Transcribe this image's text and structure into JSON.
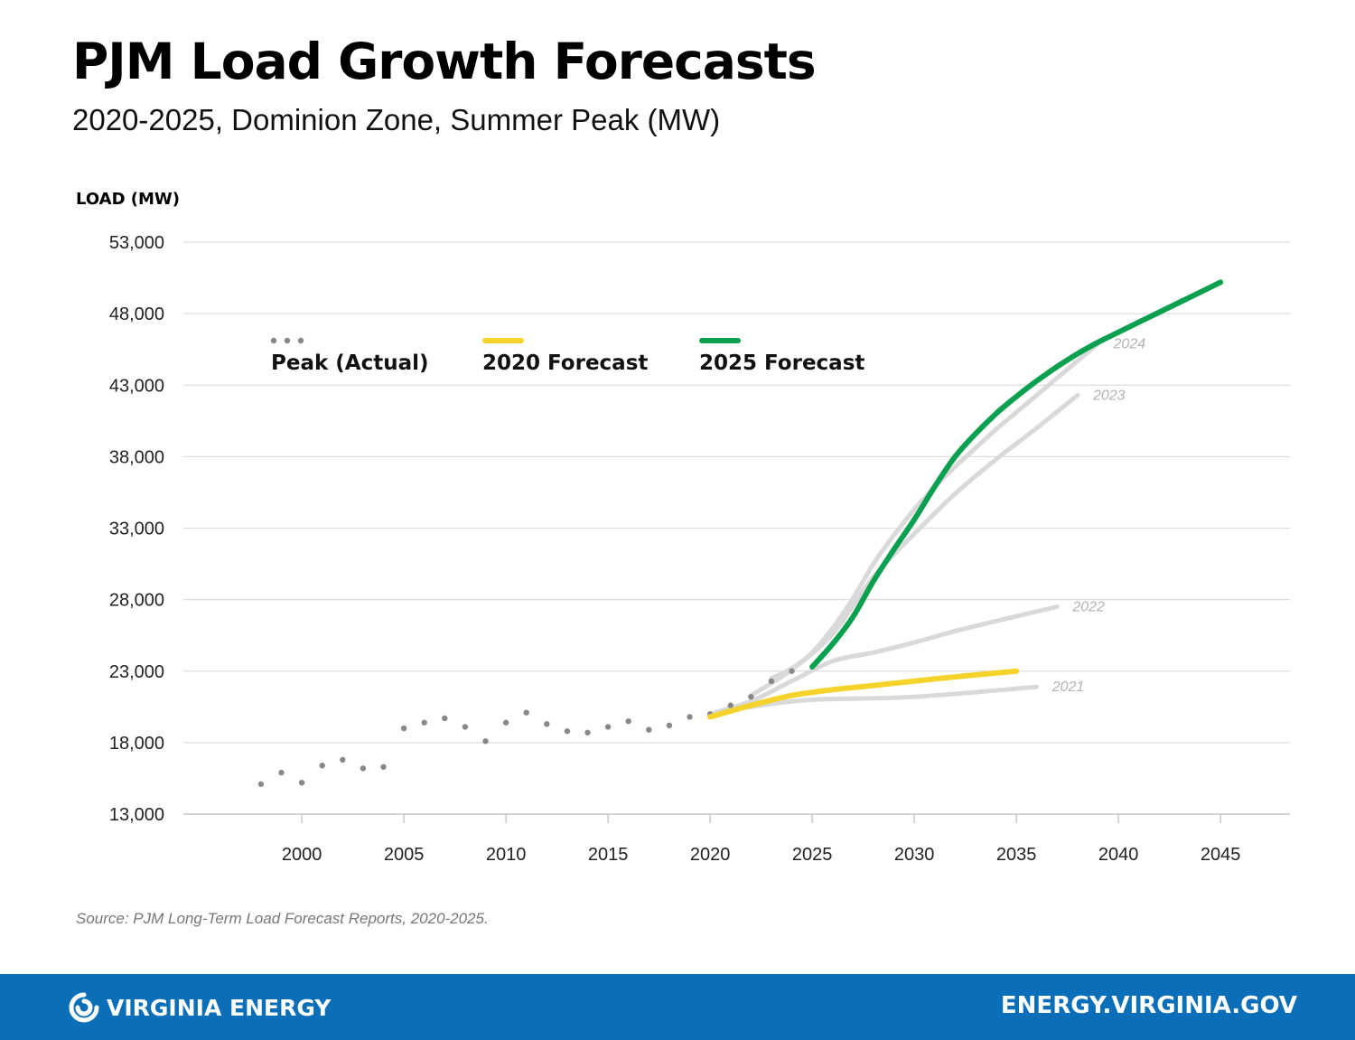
{
  "title": "PJM Load Growth Forecasts",
  "subtitle": "2020-2025, Dominion Zone, Summer Peak (MW)",
  "source": "Source: PJM Long-Term Load Forecast Reports, 2020-2025.",
  "footer": {
    "brand": "VIRGINIA ENERGY",
    "url": "ENERGY.VIRGINIA.GOV",
    "brand_icon": "virginia-energy-swirl-icon"
  },
  "colors": {
    "actual": "#888888",
    "forecast_2020": "#f5d32a",
    "forecast_2025": "#0aa04f",
    "older_forecasts": "#d9d9d9",
    "footer_bg": "#0a6eb9"
  },
  "chart_data": {
    "type": "line",
    "ylabel": "LOAD (MW)",
    "xlabel": "",
    "xlim": [
      1994.2,
      2048.4
    ],
    "ylim": [
      13000,
      53000
    ],
    "xticks": [
      2000,
      2005,
      2010,
      2015,
      2020,
      2025,
      2030,
      2035,
      2040,
      2045
    ],
    "x_tick_labels": [
      "2000",
      "2005",
      "2010",
      "2015",
      "2020",
      "2025",
      "2030",
      "2035",
      "2040",
      "2045"
    ],
    "yticks": [
      13000,
      18000,
      23000,
      28000,
      33000,
      38000,
      43000,
      48000,
      53000
    ],
    "y_tick_labels": [
      "13,000",
      "18,000",
      "23,000",
      "28,000",
      "33,000",
      "38,000",
      "43,000",
      "48,000",
      "53,000"
    ],
    "grid": "horizontal",
    "legend": [
      {
        "label": "Peak (Actual)",
        "series": "actual",
        "style": "dotted"
      },
      {
        "label": "2020 Forecast",
        "series": "forecast_2020",
        "style": "solid"
      },
      {
        "label": "2025 Forecast",
        "series": "forecast_2025",
        "style": "solid"
      }
    ],
    "series": [
      {
        "name": "Peak (Actual)",
        "id": "actual",
        "x": [
          1998,
          1999,
          2000,
          2001,
          2002,
          2003,
          2004,
          2005,
          2006,
          2007,
          2008,
          2009,
          2010,
          2011,
          2012,
          2013,
          2014,
          2015,
          2016,
          2017,
          2018,
          2019,
          2020,
          2021,
          2022,
          2023,
          2024
        ],
        "y": [
          15100,
          15900,
          15200,
          16400,
          16800,
          16200,
          16300,
          19000,
          19400,
          19700,
          19100,
          18100,
          19400,
          20100,
          19300,
          18800,
          18700,
          19100,
          19500,
          18900,
          19200,
          19800,
          20000,
          20600,
          21200,
          22300,
          23000
        ]
      },
      {
        "name": "2021",
        "id": "forecast_2021",
        "label": "2021",
        "x": [
          2020,
          2022,
          2025,
          2030,
          2036
        ],
        "y": [
          20000,
          20500,
          21000,
          21200,
          21900
        ]
      },
      {
        "name": "2022",
        "id": "forecast_2022",
        "label": "2022",
        "x": [
          2020,
          2022,
          2024,
          2026,
          2028,
          2030,
          2032,
          2034,
          2037
        ],
        "y": [
          20000,
          20900,
          22300,
          23700,
          24300,
          25000,
          25800,
          26500,
          27500
        ]
      },
      {
        "name": "2023",
        "id": "forecast_2023",
        "label": "2023",
        "x": [
          2022,
          2024,
          2026,
          2028,
          2030,
          2032,
          2034,
          2036,
          2038
        ],
        "y": [
          21300,
          23100,
          25600,
          29600,
          32600,
          35400,
          37800,
          40000,
          42300
        ]
      },
      {
        "name": "2024",
        "id": "forecast_2024",
        "label": "2024",
        "x": [
          2023,
          2024,
          2025,
          2026,
          2027,
          2028,
          2029,
          2030,
          2031,
          2032,
          2033,
          2034,
          2035,
          2036,
          2037,
          2038,
          2039
        ],
        "y": [
          22500,
          23200,
          24300,
          26000,
          28100,
          30500,
          32500,
          34300,
          35900,
          37300,
          38600,
          39900,
          41100,
          42300,
          43500,
          44700,
          45900
        ]
      },
      {
        "name": "2020 Forecast",
        "id": "forecast_2020",
        "x": [
          2020,
          2022,
          2024,
          2026,
          2028,
          2030,
          2032,
          2035
        ],
        "y": [
          19800,
          20600,
          21300,
          21700,
          22000,
          22300,
          22600,
          23000
        ]
      },
      {
        "name": "2025 Forecast",
        "id": "forecast_2025",
        "x": [
          2025,
          2026,
          2027,
          2028,
          2029,
          2030,
          2031,
          2032,
          2033,
          2034,
          2035,
          2036,
          2037,
          2038,
          2039,
          2040,
          2041,
          2042,
          2043,
          2044,
          2045
        ],
        "y": [
          23300,
          24900,
          26800,
          29300,
          31500,
          33600,
          35900,
          38000,
          39600,
          41000,
          42200,
          43300,
          44300,
          45200,
          46000,
          46700,
          47400,
          48100,
          48800,
          49500,
          50200
        ]
      }
    ]
  }
}
